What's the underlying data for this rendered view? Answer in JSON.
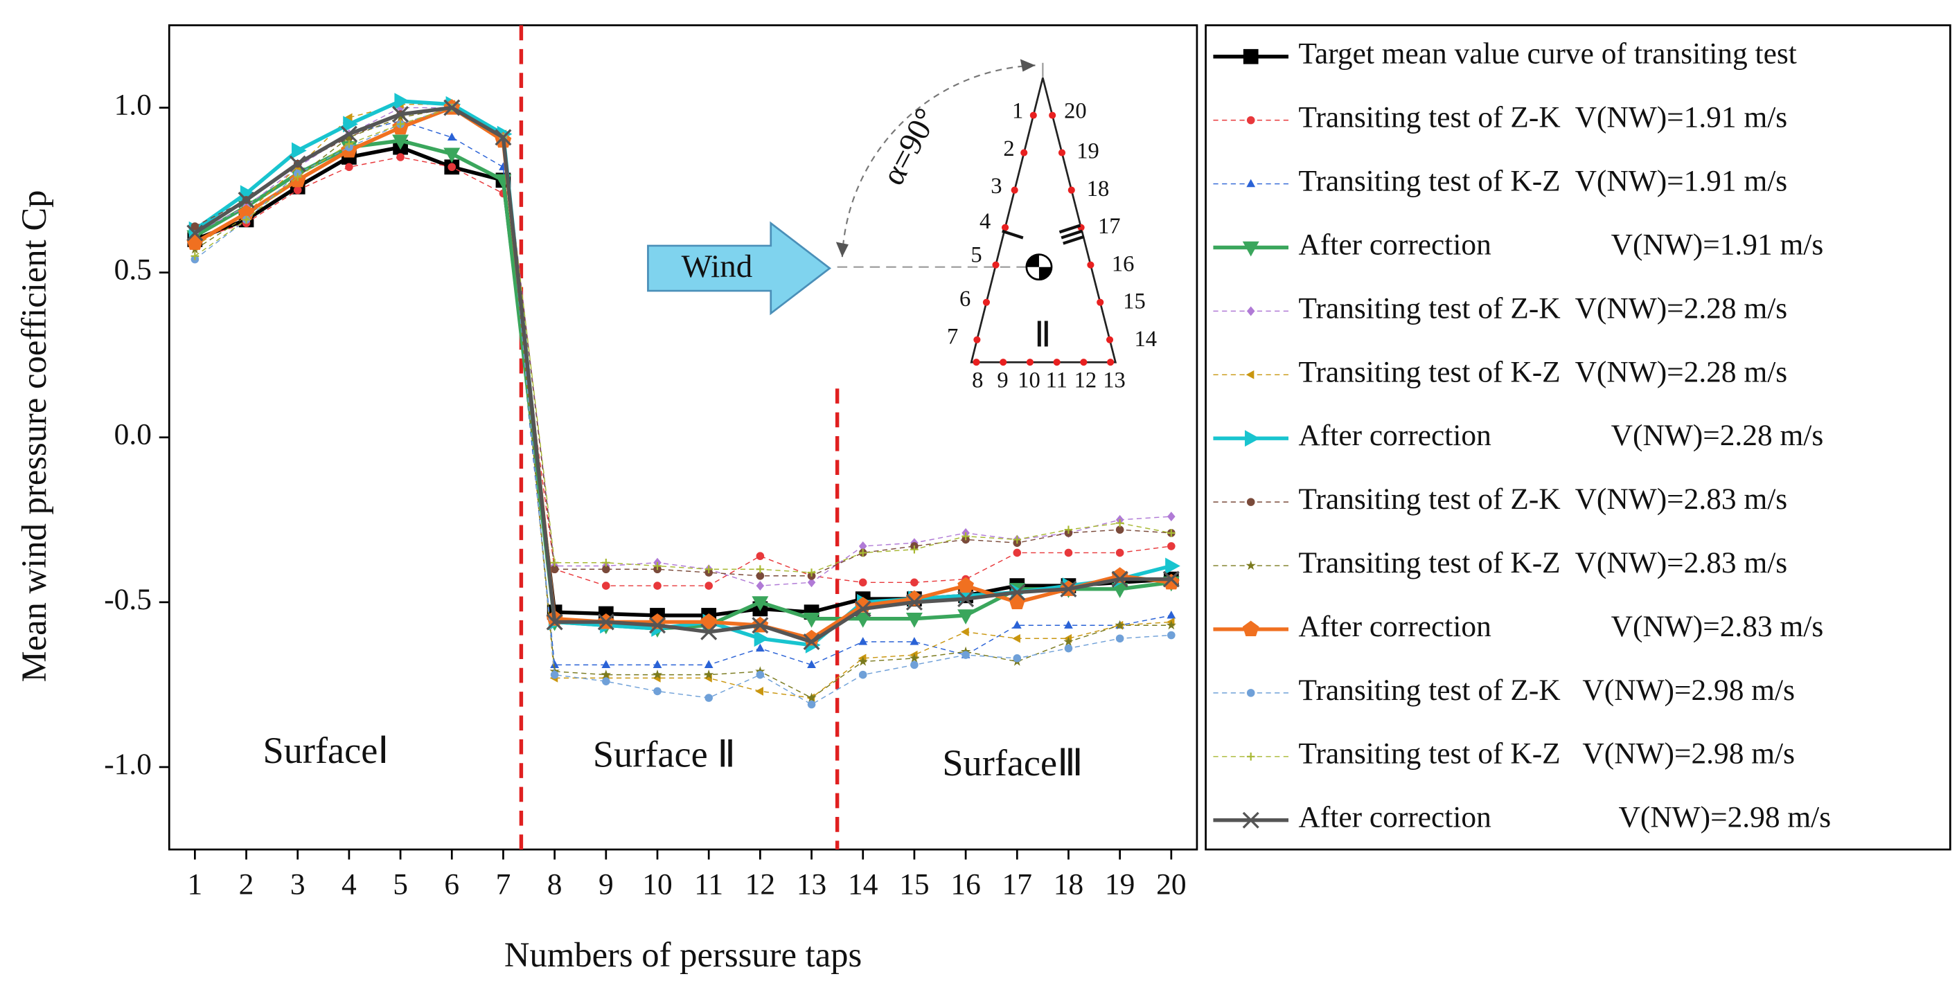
{
  "chart_data": {
    "type": "line",
    "xlabel": "Numbers of perssure taps",
    "ylabel": "Mean wind pressure coefficient Cp",
    "x": [
      1,
      2,
      3,
      4,
      5,
      6,
      7,
      8,
      9,
      10,
      11,
      12,
      13,
      14,
      15,
      16,
      17,
      18,
      19,
      20
    ],
    "xlim": [
      0.5,
      20.5
    ],
    "xticks": [
      1,
      2,
      3,
      4,
      5,
      6,
      7,
      8,
      9,
      10,
      11,
      12,
      13,
      14,
      15,
      16,
      17,
      18,
      19,
      20
    ],
    "ylim": [
      -1.25,
      1.25
    ],
    "yticks": [
      {
        "value": -1,
        "label": "-1.0"
      },
      {
        "value": -0.5,
        "label": "-0.5"
      },
      {
        "value": 0,
        "label": "0.0"
      },
      {
        "value": 0.5,
        "label": "0.5"
      },
      {
        "value": 1,
        "label": "1.0"
      }
    ],
    "dividers": [
      7.35,
      13.5
    ],
    "annotations": [
      "SurfaceⅠ",
      "Surface Ⅱ",
      "SurfaceⅢ"
    ],
    "inset": {
      "wind": "Wind",
      "angle": "α=90°",
      "surfaces": [
        "Ⅰ",
        "Ⅱ",
        "Ⅲ"
      ],
      "taps": [
        "1",
        "2",
        "3",
        "4",
        "5",
        "6",
        "7",
        "8",
        "9",
        "10",
        "11",
        "12",
        "13",
        "14",
        "15",
        "16",
        "17",
        "18",
        "19",
        "20"
      ]
    },
    "legend": "outside-right",
    "series": [
      {
        "name": "Target mean value curve of transiting test",
        "color": "#000000",
        "marker": "square",
        "style": "bold",
        "values": [
          0.6,
          0.66,
          0.76,
          0.85,
          0.88,
          0.82,
          0.78,
          -0.53,
          -0.535,
          -0.54,
          -0.54,
          -0.52,
          -0.53,
          -0.49,
          -0.49,
          -0.48,
          -0.45,
          -0.45,
          -0.44,
          -0.43
        ]
      },
      {
        "name": "Transiting test of Z-K  V(NW)=1.91 m/s",
        "color": "#e8383b",
        "marker": "circle",
        "style": "dashed",
        "values": [
          0.6,
          0.65,
          0.75,
          0.82,
          0.85,
          0.82,
          0.74,
          -0.4,
          -0.45,
          -0.45,
          -0.45,
          -0.36,
          -0.42,
          -0.44,
          -0.44,
          -0.43,
          -0.35,
          -0.35,
          -0.35,
          -0.33
        ]
      },
      {
        "name": "Transiting test of K-Z  V(NW)=1.91 m/s",
        "color": "#2a62d6",
        "marker": "triangle-up",
        "style": "dashed",
        "values": [
          0.63,
          0.72,
          0.83,
          0.92,
          0.96,
          0.91,
          0.82,
          -0.69,
          -0.69,
          -0.69,
          -0.69,
          -0.64,
          -0.69,
          -0.62,
          -0.62,
          -0.66,
          -0.57,
          -0.57,
          -0.57,
          -0.54
        ]
      },
      {
        "name": "After correction                V(NW)=1.91 m/s",
        "color": "#3aa65c",
        "marker": "triangle-down",
        "style": "bold",
        "values": [
          0.61,
          0.7,
          0.8,
          0.88,
          0.9,
          0.86,
          0.78,
          -0.56,
          -0.57,
          -0.58,
          -0.57,
          -0.5,
          -0.55,
          -0.55,
          -0.55,
          -0.54,
          -0.46,
          -0.46,
          -0.46,
          -0.44
        ]
      },
      {
        "name": "Transiting test of Z-K  V(NW)=2.28 m/s",
        "color": "#b07ad6",
        "marker": "diamond",
        "style": "dashed",
        "values": [
          0.62,
          0.7,
          0.82,
          0.92,
          1.0,
          1.0,
          0.92,
          -0.39,
          -0.39,
          -0.38,
          -0.4,
          -0.45,
          -0.44,
          -0.33,
          -0.32,
          -0.29,
          -0.31,
          -0.29,
          -0.25,
          -0.24
        ]
      },
      {
        "name": "Transiting test of K-Z  V(NW)=2.28 m/s",
        "color": "#c9960f",
        "marker": "triangle-left",
        "style": "dashed",
        "values": [
          0.58,
          0.68,
          0.82,
          0.97,
          1.01,
          1.01,
          0.92,
          -0.73,
          -0.73,
          -0.73,
          -0.73,
          -0.77,
          -0.79,
          -0.67,
          -0.66,
          -0.59,
          -0.61,
          -0.61,
          -0.57,
          -0.56
        ]
      },
      {
        "name": "After correction                V(NW)=2.28 m/s",
        "color": "#18c4cf",
        "marker": "triangle-right",
        "style": "bold",
        "values": [
          0.63,
          0.74,
          0.87,
          0.95,
          1.02,
          1.01,
          0.92,
          -0.56,
          -0.57,
          -0.58,
          -0.56,
          -0.61,
          -0.63,
          -0.5,
          -0.49,
          -0.48,
          -0.47,
          -0.45,
          -0.43,
          -0.39
        ]
      },
      {
        "name": "Transiting test of Z-K  V(NW)=2.83 m/s",
        "color": "#7a4a3a",
        "marker": "circle",
        "style": "dashed",
        "values": [
          0.64,
          0.72,
          0.83,
          0.91,
          0.98,
          1.0,
          0.91,
          -0.4,
          -0.4,
          -0.4,
          -0.41,
          -0.42,
          -0.42,
          -0.35,
          -0.33,
          -0.31,
          -0.32,
          -0.29,
          -0.28,
          -0.29
        ]
      },
      {
        "name": "Transiting test of K-Z  V(NW)=2.83 m/s",
        "color": "#7a7a1e",
        "marker": "star",
        "style": "dashed",
        "values": [
          0.57,
          0.67,
          0.79,
          0.91,
          0.97,
          1.0,
          0.91,
          -0.71,
          -0.72,
          -0.72,
          -0.72,
          -0.71,
          -0.79,
          -0.68,
          -0.67,
          -0.65,
          -0.68,
          -0.62,
          -0.57,
          -0.57
        ]
      },
      {
        "name": "After correction                V(NW)=2.83 m/s",
        "color": "#f07020",
        "marker": "pentagon",
        "style": "bold",
        "values": [
          0.59,
          0.68,
          0.78,
          0.87,
          0.94,
          1.0,
          0.9,
          -0.55,
          -0.56,
          -0.56,
          -0.56,
          -0.57,
          -0.61,
          -0.51,
          -0.49,
          -0.45,
          -0.5,
          -0.46,
          -0.42,
          -0.44
        ]
      },
      {
        "name": "Transiting test of Z-K   V(NW)=2.98 m/s",
        "color": "#6fa0d8",
        "marker": "circle",
        "style": "dashed",
        "values": [
          0.54,
          0.66,
          0.8,
          0.88,
          0.95,
          1.0,
          0.91,
          -0.72,
          -0.74,
          -0.77,
          -0.79,
          -0.72,
          -0.81,
          -0.72,
          -0.69,
          -0.66,
          -0.67,
          -0.64,
          -0.61,
          -0.6
        ]
      },
      {
        "name": "Transiting test of K-Z   V(NW)=2.98 m/s",
        "color": "#a8b832",
        "marker": "plus",
        "style": "dashed",
        "values": [
          0.55,
          0.66,
          0.79,
          0.89,
          0.95,
          1.0,
          0.91,
          -0.38,
          -0.38,
          -0.39,
          -0.4,
          -0.4,
          -0.41,
          -0.35,
          -0.34,
          -0.3,
          -0.31,
          -0.28,
          -0.26,
          -0.29
        ]
      },
      {
        "name": "After correction                 V(NW)=2.98 m/s",
        "color": "#555555",
        "marker": "x",
        "style": "bold",
        "values": [
          0.62,
          0.72,
          0.83,
          0.92,
          0.98,
          1.0,
          0.91,
          -0.56,
          -0.56,
          -0.57,
          -0.59,
          -0.57,
          -0.62,
          -0.52,
          -0.5,
          -0.49,
          -0.47,
          -0.46,
          -0.43,
          -0.43
        ]
      }
    ]
  }
}
